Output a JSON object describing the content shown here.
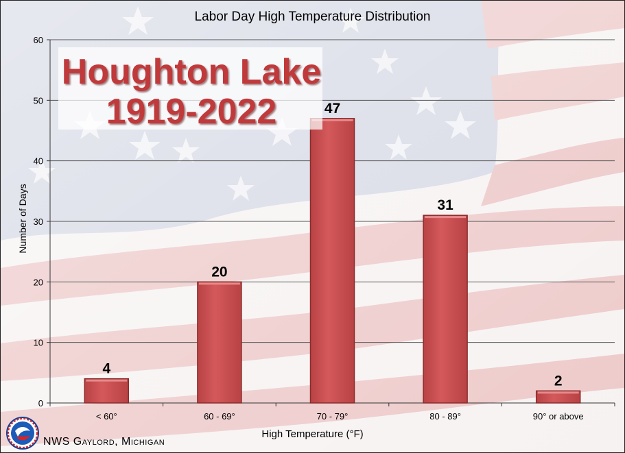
{
  "overlay": {
    "line1": "Houghton Lake",
    "line2": "1919-2022"
  },
  "footer": "NWS Gaylord, Michigan",
  "colors": {
    "bar": "#cd5254",
    "bar_edge": "#8a2c2c",
    "title_red": "#c0393b"
  },
  "chart_data": {
    "type": "bar",
    "title": "Labor Day High Temperature Distribution",
    "xlabel": "High Temperature (°F)",
    "ylabel": "Number of Days",
    "categories": [
      "< 60°",
      "60 - 69°",
      "70 - 79°",
      "80 - 89°",
      "90° or above"
    ],
    "values": [
      4,
      20,
      47,
      31,
      2
    ],
    "ylim": [
      0,
      60
    ],
    "yticks": [
      0,
      10,
      20,
      30,
      40,
      50,
      60
    ],
    "grid": true
  }
}
